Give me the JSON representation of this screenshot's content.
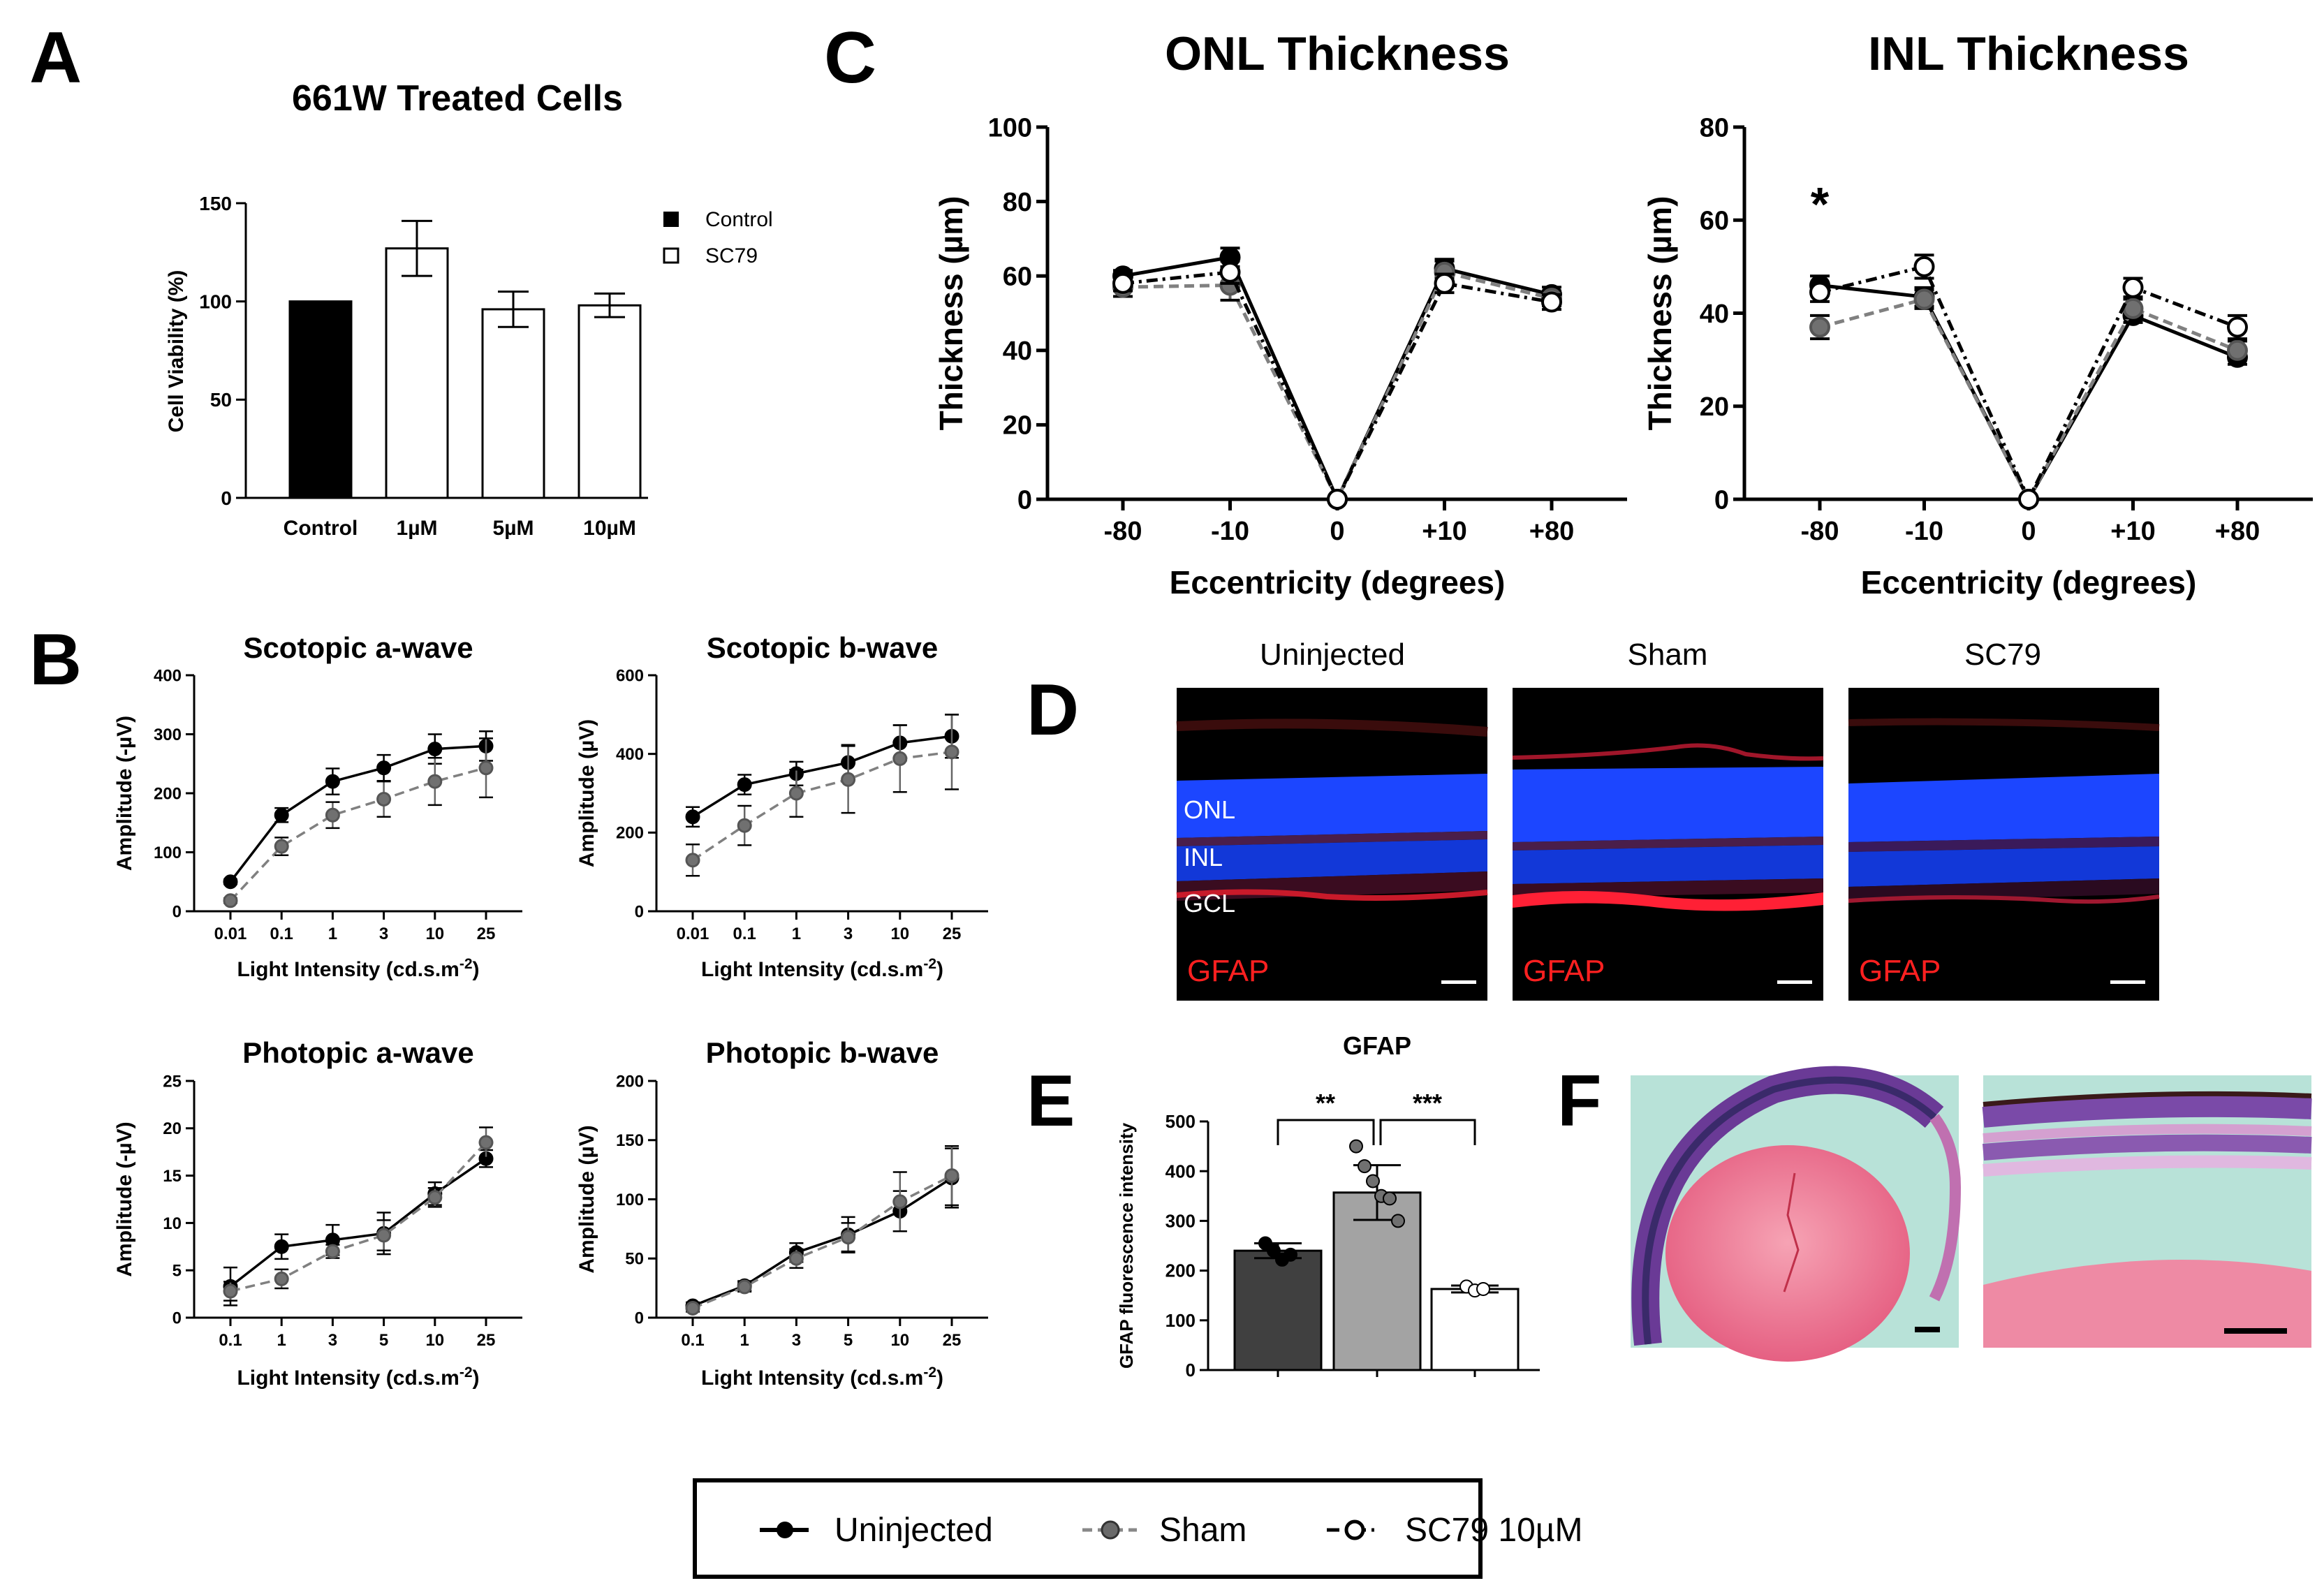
{
  "panel_letters": {
    "A": "A",
    "B": "B",
    "C": "C",
    "D": "D",
    "E": "E",
    "F": "F"
  },
  "colors": {
    "black": "#000000",
    "sham": "#7a7a7a",
    "sham_dark": "#595959",
    "red": "#ff2020",
    "blue": "#1a3cff",
    "dark_bar": "#404040",
    "grey_bar": "#a0a0a0"
  },
  "legend_A": {
    "control": "Control",
    "sc79": "SC79"
  },
  "panel_D": {
    "titles": [
      "Uninjected",
      "Sham",
      "SC79"
    ],
    "layers": {
      "onl": "ONL",
      "inl": "INL",
      "gcl": "GCL"
    },
    "gfap": "GFAP"
  },
  "bottom_legend": {
    "uninjected": "Uninjected",
    "sham": "Sham",
    "sc79": "SC79 10µM"
  },
  "chart_data": [
    {
      "id": "A",
      "type": "bar",
      "title": "661W Treated Cells",
      "ylabel": "Cell Viability (%)",
      "ylim": [
        0,
        150
      ],
      "yticks": [
        "0",
        "50",
        "100",
        "150"
      ],
      "ytick_values": [
        0,
        50,
        100,
        150
      ],
      "categories": [
        "Control",
        "1µM",
        "5µM",
        "10µM"
      ],
      "values": [
        100,
        127,
        96,
        98
      ],
      "errors": [
        0,
        14,
        9,
        6
      ],
      "legend_position": "top-right"
    },
    {
      "id": "B1",
      "type": "line",
      "title": "Scotopic a-wave",
      "ylabel": "Amplitude (-µV)",
      "xlabel": "Light Intensity (cd.s.m",
      "xlabel_sup": "-2",
      "xlabel_end": ")",
      "categories": [
        "0.01",
        "0.1",
        "1",
        "3",
        "10",
        "25"
      ],
      "ylim": [
        0,
        400
      ],
      "yticks": [
        "0",
        "100",
        "200",
        "300",
        "400"
      ],
      "ytick_values": [
        0,
        100,
        200,
        300,
        400
      ],
      "series": [
        {
          "values": [
            50,
            163,
            220,
            243,
            275,
            280
          ],
          "errors": [
            4,
            12,
            22,
            22,
            25,
            25
          ]
        },
        {
          "values": [
            18,
            110,
            163,
            190,
            220,
            243
          ],
          "errors": [
            4,
            15,
            22,
            30,
            40,
            50
          ]
        }
      ]
    },
    {
      "id": "B2",
      "type": "line",
      "title": "Scotopic b-wave",
      "ylabel": "Amplitude (µV)",
      "xlabel": "Light Intensity (cd.s.m",
      "xlabel_sup": "-2",
      "xlabel_end": ")",
      "categories": [
        "0.01",
        "0.1",
        "1",
        "3",
        "10",
        "25"
      ],
      "ylim": [
        0,
        600
      ],
      "yticks": [
        "0",
        "200",
        "400",
        "600"
      ],
      "ytick_values": [
        0,
        200,
        400,
        600
      ],
      "series": [
        {
          "values": [
            240,
            322,
            350,
            378,
            428,
            445
          ],
          "errors": [
            25,
            25,
            30,
            45,
            45,
            55
          ]
        },
        {
          "values": [
            130,
            218,
            300,
            335,
            388,
            405
          ],
          "errors": [
            40,
            50,
            60,
            85,
            85,
            95
          ]
        }
      ]
    },
    {
      "id": "B3",
      "type": "line",
      "title": "Photopic a-wave",
      "ylabel": "Amplitude (-µV)",
      "xlabel": "Light Intensity (cd.s.m",
      "xlabel_sup": "-2",
      "xlabel_end": ")",
      "categories": [
        "0.1",
        "1",
        "3",
        "5",
        "10",
        "25"
      ],
      "ylim": [
        0,
        25
      ],
      "yticks": [
        "0",
        "5",
        "10",
        "15",
        "20",
        "25"
      ],
      "ytick_values": [
        0,
        5,
        10,
        15,
        20,
        25
      ],
      "series": [
        {
          "values": [
            3.3,
            7.5,
            8.2,
            8.9,
            13.1,
            16.8
          ],
          "errors": [
            2,
            1.3,
            1.6,
            2.2,
            1.2,
            0.9
          ]
        },
        {
          "values": [
            2.8,
            4.1,
            7.0,
            8.7,
            12.7,
            18.5
          ],
          "errors": [
            1,
            1,
            0.7,
            1.6,
            1,
            1.6
          ]
        }
      ]
    },
    {
      "id": "B4",
      "type": "line",
      "title": "Photopic b-wave",
      "ylabel": "Amplitude (µV)",
      "xlabel": "Light Intensity (cd.s.m",
      "xlabel_sup": "-2",
      "xlabel_end": ")",
      "categories": [
        "0.1",
        "1",
        "3",
        "5",
        "10",
        "25"
      ],
      "ylim": [
        0,
        200
      ],
      "yticks": [
        "0",
        "50",
        "100",
        "150",
        "200"
      ],
      "ytick_values": [
        0,
        50,
        100,
        150,
        200
      ],
      "series": [
        {
          "values": [
            10,
            27,
            55,
            70,
            90,
            118
          ],
          "errors": [
            3,
            4,
            8,
            15,
            17,
            25
          ]
        },
        {
          "values": [
            8,
            26,
            50,
            68,
            98,
            120
          ],
          "errors": [
            3,
            4,
            8,
            12,
            25,
            25
          ]
        }
      ]
    },
    {
      "id": "C1",
      "type": "line",
      "title": "ONL Thickness",
      "ylabel": "Thickness (µm)",
      "xlabel": "Eccentricity (degrees)",
      "categories": [
        "-80",
        "-10",
        "0",
        "+10",
        "+80"
      ],
      "ylim": [
        0,
        100
      ],
      "yticks": [
        "0",
        "20",
        "40",
        "60",
        "80",
        "100"
      ],
      "ytick_values": [
        0,
        20,
        40,
        60,
        80,
        100
      ],
      "series": [
        {
          "values": [
            60,
            65,
            0,
            62,
            55
          ],
          "errors": [
            1.5,
            2.5,
            0,
            2.5,
            2
          ]
        },
        {
          "values": [
            57,
            57.5,
            0,
            61,
            54
          ],
          "errors": [
            2.5,
            4,
            0,
            3,
            2
          ]
        },
        {
          "values": [
            58,
            61,
            0,
            58,
            53
          ],
          "errors": [
            2,
            3,
            0,
            2.5,
            2
          ]
        }
      ]
    },
    {
      "id": "C2",
      "type": "line",
      "title": "INL Thickness",
      "ylabel": "Thickness (µm)",
      "xlabel": "Eccentricity (degrees)",
      "categories": [
        "-80",
        "-10",
        "0",
        "+10",
        "+80"
      ],
      "ylim": [
        0,
        80
      ],
      "yticks": [
        "0",
        "20",
        "40",
        "60",
        "80"
      ],
      "ytick_values": [
        0,
        20,
        40,
        60,
        80
      ],
      "annotation": "*",
      "series": [
        {
          "values": [
            46,
            43.5,
            0,
            39.5,
            30.5
          ],
          "errors": [
            2,
            2,
            0,
            1.5,
            1.5
          ]
        },
        {
          "values": [
            37,
            43,
            0,
            41,
            32
          ],
          "errors": [
            2.5,
            2,
            0,
            2,
            2
          ]
        },
        {
          "values": [
            44.5,
            50,
            0,
            45.5,
            37
          ],
          "errors": [
            2,
            2.5,
            0,
            2,
            2.5
          ]
        }
      ]
    },
    {
      "id": "E",
      "type": "bar",
      "title": "GFAP",
      "ylabel": "GFAP fluorescence intensity",
      "ylim": [
        0,
        500
      ],
      "yticks": [
        "0",
        "100",
        "200",
        "300",
        "400",
        "500"
      ],
      "ytick_values": [
        0,
        100,
        200,
        300,
        400,
        500
      ],
      "values": [
        240,
        357,
        163
      ],
      "errors": [
        15,
        55,
        7
      ],
      "points": [
        [
          255,
          240,
          222,
          232
        ],
        [
          450,
          410,
          380,
          350,
          345,
          300
        ],
        [
          168,
          160,
          163
        ]
      ],
      "significance": [
        "**",
        "***"
      ]
    }
  ]
}
